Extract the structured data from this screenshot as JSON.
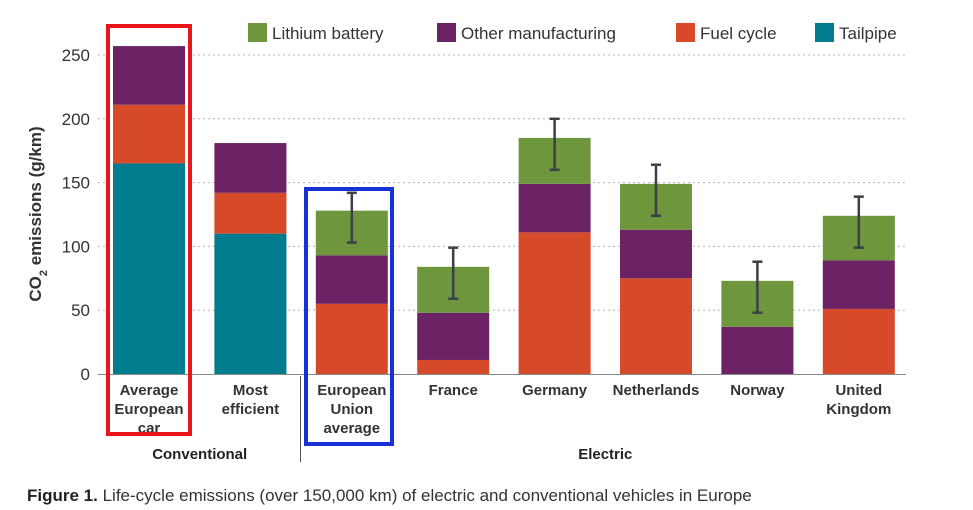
{
  "caption": {
    "label": "Figure 1.",
    "text": "Life-cycle emissions (over 150,000 km) of electric and conventional vehicles in Europe"
  },
  "chart_data": {
    "type": "bar",
    "stacked": true,
    "ylabel_main": "CO",
    "ylabel_sub": "2",
    "ylabel_rest": " emissions (g/km)",
    "ylim": [
      0,
      260
    ],
    "yticks": [
      0,
      50,
      100,
      150,
      200,
      250
    ],
    "grid": true,
    "legend_position": "top-right",
    "categories": [
      [
        "Average",
        "European",
        "car"
      ],
      [
        "Most",
        "efficient"
      ],
      [
        "European",
        "Union",
        "average"
      ],
      [
        "France"
      ],
      [
        "Germany"
      ],
      [
        "Netherlands"
      ],
      [
        "Norway"
      ],
      [
        "United",
        "Kingdom"
      ]
    ],
    "groups": [
      {
        "name": "Conventional",
        "from": 0,
        "to": 1
      },
      {
        "name": "Electric",
        "from": 2,
        "to": 7
      }
    ],
    "series": [
      {
        "name": "Tailpipe",
        "color": "#007c8f",
        "values": [
          165,
          110,
          0,
          0,
          0,
          0,
          0,
          0
        ]
      },
      {
        "name": "Fuel cycle",
        "color": "#d64a2a",
        "values": [
          46,
          32,
          55,
          11,
          111,
          75,
          0,
          51
        ]
      },
      {
        "name": "Other manufacturing",
        "color": "#6b2366",
        "values": [
          46,
          39,
          38,
          37,
          38,
          38,
          37,
          38
        ]
      },
      {
        "name": "Lithium battery",
        "color": "#6e963d",
        "values": [
          0,
          0,
          35,
          36,
          36,
          36,
          36,
          35
        ]
      }
    ],
    "legend_order": [
      "Lithium battery",
      "Other manufacturing",
      "Fuel cycle",
      "Tailpipe"
    ],
    "error_bars": [
      null,
      null,
      [
        103,
        142
      ],
      [
        59,
        99
      ],
      [
        160,
        200
      ],
      [
        124,
        164
      ],
      [
        48,
        88
      ],
      [
        99,
        139
      ]
    ],
    "highlights": [
      {
        "category_index": 0,
        "color": "#e8151b"
      },
      {
        "category_index": 2,
        "color": "#1631d6"
      }
    ]
  }
}
